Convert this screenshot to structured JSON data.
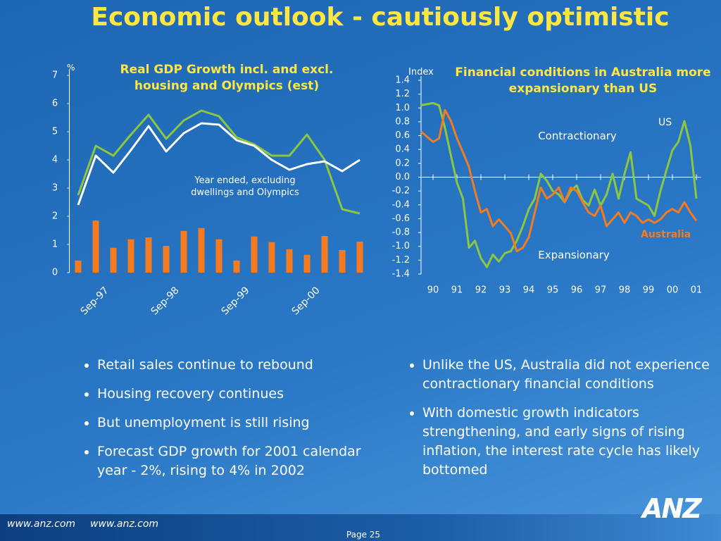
{
  "slide": {
    "title": "Economic outlook - cautiously optimistic",
    "bullets_left": [
      "Retail sales continue to rebound",
      "Housing recovery continues",
      "But unemployment is still rising",
      "Forecast GDP growth for 2001 calendar year -  2%, rising to 4% in 2002"
    ],
    "bullets_right": [
      "Unlike the US, Australia did not experience contractionary financial conditions",
      "With domestic growth indicators strengthening, and early signs of rising inflation, the interest rate cycle has likely bottomed"
    ],
    "footer_links": [
      "www.anz.com",
      "www.anz.com"
    ],
    "page": "Page 25",
    "logo": "ANZ"
  },
  "chart_data": [
    {
      "type": "combo",
      "title": "Real GDP Growth incl. and excl. housing and Olympics (est)",
      "y_label": "%",
      "annotation": "Year ended, excluding dwellings and Olympics",
      "categories": [
        null,
        "Sep-97",
        null,
        null,
        null,
        "Sep-98",
        null,
        null,
        null,
        "Sep-99",
        null,
        null,
        null,
        "Sep-00",
        null,
        null,
        null
      ],
      "series": [
        {
          "type": "bar",
          "color": "#f47b20",
          "values": [
            0.43,
            1.85,
            0.88,
            1.18,
            1.25,
            0.95,
            1.48,
            1.58,
            1.18,
            0.43,
            1.28,
            1.08,
            0.83,
            0.63,
            1.3,
            0.8,
            1.1
          ]
        },
        {
          "type": "line",
          "color": "#8dc63f",
          "values": [
            2.75,
            4.5,
            4.15,
            4.9,
            5.6,
            4.75,
            5.4,
            5.75,
            5.55,
            4.8,
            4.55,
            4.15,
            4.15,
            4.9,
            4.0,
            2.25,
            2.1
          ]
        },
        {
          "type": "line",
          "color": "#ffffff",
          "values": [
            2.4,
            4.15,
            3.55,
            4.35,
            5.2,
            4.3,
            4.95,
            5.3,
            5.25,
            4.7,
            4.5,
            4.0,
            3.65,
            3.85,
            3.95,
            3.6,
            4.0
          ]
        }
      ],
      "ylim": [
        0,
        7
      ],
      "yticks": [
        0,
        1,
        2,
        3,
        4,
        5,
        6,
        7
      ]
    },
    {
      "type": "line",
      "title": "Financial conditions in Australia more expansionary than US",
      "y_label": "Index",
      "annotations": [
        "Contractionary",
        "Expansionary"
      ],
      "x": [
        1989.5,
        1990,
        1990.25,
        1990.5,
        1990.75,
        1991,
        1991.25,
        1991.5,
        1991.75,
        1992,
        1992.25,
        1992.5,
        1992.75,
        1993,
        1993.25,
        1993.5,
        1993.75,
        1994,
        1994.25,
        1994.5,
        1994.75,
        1995,
        1995.25,
        1995.5,
        1995.75,
        1996,
        1996.25,
        1996.5,
        1996.75,
        1997,
        1997.25,
        1997.5,
        1997.75,
        1998,
        1998.25,
        1998.5,
        1998.75,
        1999,
        1999.25,
        1999.5,
        1999.75,
        2000,
        2000.25,
        2000.5,
        2000.75,
        2001
      ],
      "series": [
        {
          "name": "US",
          "color": "#8dc63f",
          "values": [
            1.04,
            1.07,
            1.04,
            0.71,
            0.31,
            -0.08,
            -0.31,
            -1.02,
            -0.92,
            -1.17,
            -1.3,
            -1.12,
            -1.22,
            -1.1,
            -1.07,
            -0.92,
            -0.71,
            -0.46,
            -0.31,
            0.05,
            -0.05,
            -0.2,
            -0.25,
            -0.36,
            -0.2,
            -0.12,
            -0.33,
            -0.41,
            -0.18,
            -0.41,
            -0.25,
            0.05,
            -0.31,
            0.05,
            0.36,
            -0.31,
            -0.36,
            -0.41,
            -0.56,
            -0.2,
            0.1,
            0.39,
            0.51,
            0.81,
            0.46,
            -0.31
          ]
        },
        {
          "name": "Australia",
          "color": "#f47b20",
          "values": [
            0.66,
            0.51,
            0.56,
            0.97,
            0.81,
            0.56,
            0.36,
            0.15,
            -0.2,
            -0.51,
            -0.46,
            -0.71,
            -0.61,
            -0.71,
            -0.81,
            -1.07,
            -1.02,
            -0.87,
            -0.51,
            -0.15,
            -0.31,
            -0.25,
            -0.15,
            -0.36,
            -0.15,
            -0.2,
            -0.36,
            -0.51,
            -0.56,
            -0.41,
            -0.71,
            -0.61,
            -0.51,
            -0.66,
            -0.51,
            -0.56,
            -0.66,
            -0.61,
            -0.66,
            -0.61,
            -0.51,
            -0.46,
            -0.51,
            -0.36,
            -0.51,
            -0.63
          ]
        }
      ],
      "xlim": [
        1989.5,
        2001.2
      ],
      "xticks": [
        {
          "value": 1990,
          "label": "90"
        },
        {
          "value": 1991,
          "label": "91"
        },
        {
          "value": 1992,
          "label": "92"
        },
        {
          "value": 1993,
          "label": "93"
        },
        {
          "value": 1994,
          "label": "94"
        },
        {
          "value": 1995,
          "label": "95"
        },
        {
          "value": 1996,
          "label": "96"
        },
        {
          "value": 1997,
          "label": "97"
        },
        {
          "value": 1998,
          "label": "98"
        },
        {
          "value": 1999,
          "label": "99"
        },
        {
          "value": 2000,
          "label": "00"
        },
        {
          "value": 2001,
          "label": "01"
        }
      ],
      "ylim": [
        -1.4,
        1.4
      ],
      "yticks": [
        -1.4,
        -1.2,
        {
          "value": -1,
          "label": "-1.0"
        },
        -0.8,
        -0.6,
        -0.4,
        -0.2,
        {
          "value": 0,
          "label": "0.0"
        },
        0.2,
        0.4,
        0.6,
        0.8,
        {
          "value": 1,
          "label": "1.0"
        },
        1.2,
        1.4
      ]
    }
  ]
}
